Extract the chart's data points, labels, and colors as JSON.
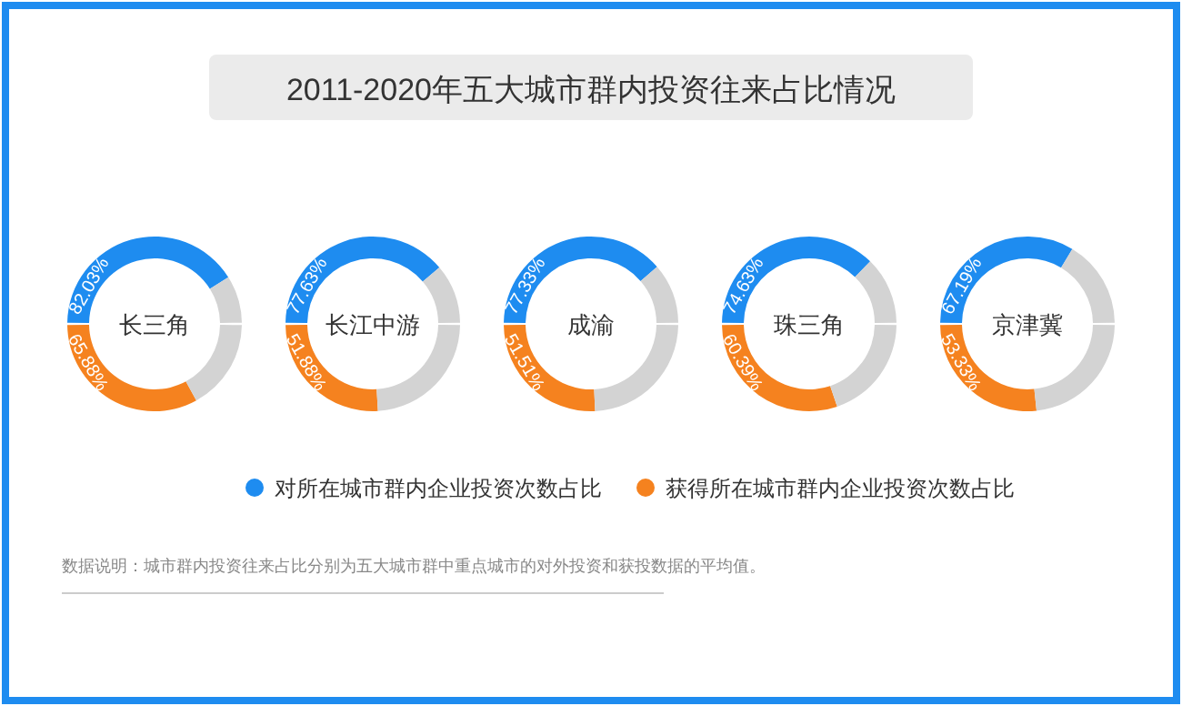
{
  "chart_data": [
    {
      "type": "other",
      "title": "2011-2020年五大城市群内投资往来占比情况",
      "annotations": [
        "数据说明：城市群内投资往来占比分别为五大城市群中重点城市的对外投资和获投数据的平均值。"
      ]
    },
    {
      "type": "donut",
      "title": "长三角",
      "categories": [
        "对所在城市群内企业投资次数占比",
        null
      ],
      "values": [
        82.03,
        17.97
      ],
      "colors": [
        "#1e8cf0",
        "#d3d3d3"
      ],
      "value_labels": [
        "82.03%",
        null
      ],
      "legend": "bottom"
    },
    {
      "type": "donut",
      "categories": [
        "获得所在城市群内企业投资次数占比",
        null
      ],
      "values": [
        65.88,
        34.12
      ],
      "colors": [
        "#f5821f",
        "#d3d3d3"
      ],
      "value_labels": [
        "65.88%",
        null
      ],
      "legend": "bottom"
    },
    {
      "type": "donut",
      "title": "长江中游",
      "categories": [
        null,
        null
      ],
      "values": [
        77.63,
        22.37
      ],
      "colors": [
        "#1e8cf0",
        "#d3d3d3"
      ],
      "value_labels": [
        "77.63%",
        null
      ]
    },
    {
      "type": "donut",
      "categories": [
        null,
        null
      ],
      "values": [
        51.88,
        48.12
      ],
      "colors": [
        "#f5821f",
        "#d3d3d3"
      ],
      "value_labels": [
        "51.88%",
        null
      ]
    },
    {
      "type": "donut",
      "title": "成渝",
      "categories": [
        null,
        null
      ],
      "values": [
        77.33,
        22.67
      ],
      "colors": [
        "#1e8cf0",
        "#d3d3d3"
      ],
      "value_labels": [
        "77.33%",
        null
      ]
    },
    {
      "type": "donut",
      "categories": [
        null,
        null
      ],
      "values": [
        51.51,
        48.49
      ],
      "colors": [
        "#f5821f",
        "#d3d3d3"
      ],
      "value_labels": [
        "51.51%",
        null
      ]
    },
    {
      "type": "donut",
      "title": "珠三角",
      "categories": [
        null,
        null
      ],
      "values": [
        74.63,
        25.37
      ],
      "colors": [
        "#1e8cf0",
        "#d3d3d3"
      ],
      "value_labels": [
        "74.63%",
        null
      ]
    },
    {
      "type": "donut",
      "categories": [
        null,
        null
      ],
      "values": [
        60.39,
        39.61
      ],
      "colors": [
        "#f5821f",
        "#d3d3d3"
      ],
      "value_labels": [
        "60.39%",
        null
      ]
    },
    {
      "type": "donut",
      "title": "京津冀",
      "categories": [
        null,
        null
      ],
      "values": [
        67.19,
        32.81
      ],
      "colors": [
        "#1e8cf0",
        "#d3d3d3"
      ],
      "value_labels": [
        "67.19%",
        null
      ]
    },
    {
      "type": "donut",
      "categories": [
        null,
        null
      ],
      "values": [
        53.33,
        46.67
      ],
      "colors": [
        "#f5821f",
        "#d3d3d3"
      ],
      "value_labels": [
        "53.33%",
        null
      ]
    }
  ]
}
